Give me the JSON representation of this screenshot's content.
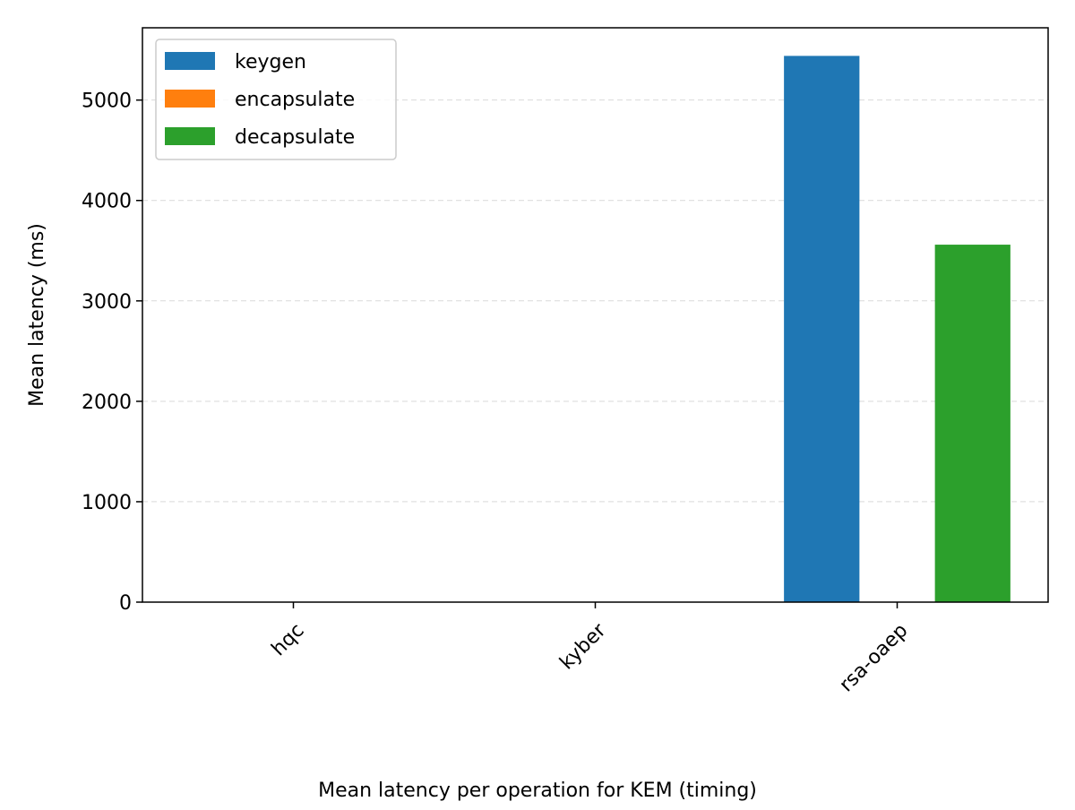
{
  "chart_data": {
    "type": "bar",
    "categories": [
      "hqc",
      "kyber",
      "rsa-oaep"
    ],
    "series": [
      {
        "name": "keygen",
        "color": "#1f77b4",
        "values": [
          0.3,
          0.1,
          5440
        ]
      },
      {
        "name": "encapsulate",
        "color": "#ff7f0e",
        "values": [
          0.2,
          0.1,
          0.4
        ]
      },
      {
        "name": "decapsulate",
        "color": "#2ca02c",
        "values": [
          0.4,
          0.1,
          3560
        ]
      }
    ],
    "title": "",
    "xlabel": "Mean latency per operation for KEM (timing)",
    "ylabel": "Mean latency (ms)",
    "ylim": [
      0,
      5720
    ],
    "yticks": [
      0,
      1000,
      2000,
      3000,
      4000,
      5000
    ],
    "grid": "y-dashed",
    "legend_position": "top-left"
  }
}
